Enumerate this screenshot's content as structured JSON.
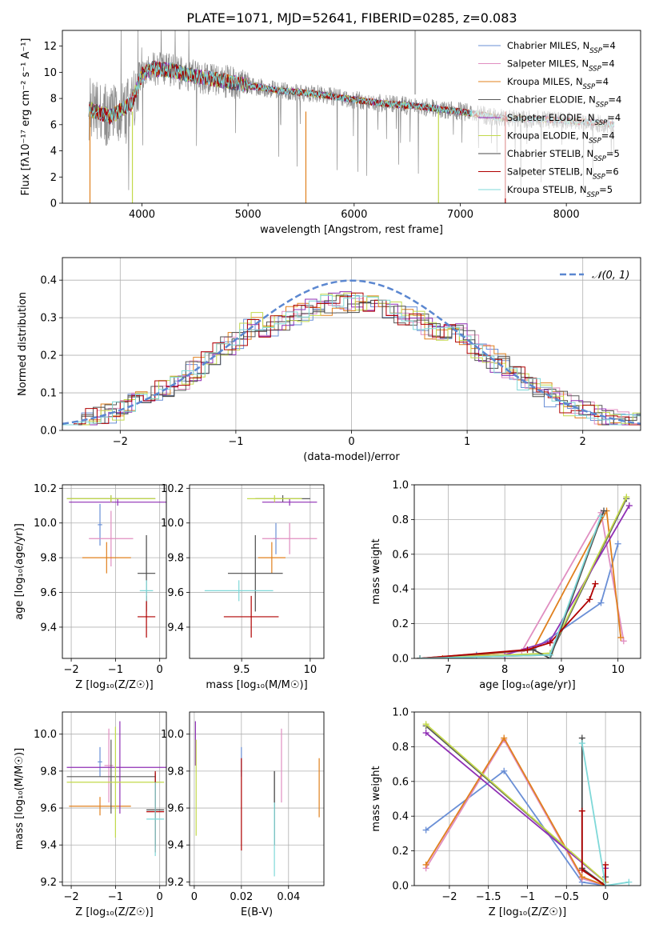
{
  "figure_title": "PLATE=1071, MJD=52641, FIBERID=0285, z=0.083",
  "colors": {
    "cM": "#6a8fd6",
    "sM": "#e08ec1",
    "kM": "#e0801e",
    "cE": "#5a5a5a",
    "sE": "#8f2fb5",
    "kE": "#c2d94a",
    "cS": "#4a4a4a",
    "sS": "#b00000",
    "kS": "#7fd8d8",
    "data": "#8c8c8c",
    "grid": "#b0b0b0",
    "normal": "#5b87d0"
  },
  "chart_data": [
    {
      "id": "spectrum",
      "type": "line",
      "xlabel": "wavelength [Angstrom, rest frame]",
      "ylabel": "Flux [fλ10⁻¹⁷ erg cm⁻² s⁻¹ A⁻¹]",
      "xlim": [
        3250,
        8700
      ],
      "ylim": [
        0,
        13.2
      ],
      "xticks": [
        4000,
        5000,
        6000,
        7000,
        8000
      ],
      "yticks": [
        0,
        2,
        4,
        6,
        8,
        10,
        12
      ],
      "legend_position": "top-right",
      "data_continuum": {
        "x": [
          3500,
          3700,
          3900,
          4000,
          4100,
          4300,
          4500,
          4800,
          5000,
          5300,
          5600,
          6000,
          6300,
          6600,
          7000,
          7400,
          7800,
          8200,
          8450
        ],
        "y": [
          7.2,
          6.6,
          7.6,
          9.8,
          10.3,
          10.1,
          9.7,
          9.3,
          9.0,
          8.6,
          8.4,
          7.9,
          7.6,
          7.4,
          7.0,
          6.5,
          6.4,
          6.2,
          6.0
        ]
      },
      "series": [
        {
          "name": "Chabrier MILES, N_SSP=4",
          "color_key": "cM"
        },
        {
          "name": "Salpeter MILES, N_SSP=4",
          "color_key": "sM"
        },
        {
          "name": "Kroupa MILES, N_SSP=4",
          "color_key": "kM"
        },
        {
          "name": "Chabrier ELODIE, N_SSP=4",
          "color_key": "cE"
        },
        {
          "name": "Salpeter ELODIE, N_SSP=4",
          "color_key": "sE"
        },
        {
          "name": "Kroupa ELODIE, N_SSP=4",
          "color_key": "kE"
        },
        {
          "name": "Chabrier STELIB, N_SSP=5",
          "color_key": "cS"
        },
        {
          "name": "Salpeter STELIB, N_SSP=6",
          "color_key": "sS"
        },
        {
          "name": "Kroupa STELIB, N_SSP=5",
          "color_key": "kS"
        }
      ]
    },
    {
      "id": "residuals",
      "type": "line",
      "xlabel": "(data-model)/error",
      "ylabel": "Normed distribution",
      "xlim": [
        -2.5,
        2.5
      ],
      "ylim": [
        0,
        0.46
      ],
      "xticks": [
        -2,
        -1,
        0,
        1,
        2
      ],
      "yticks": [
        0.0,
        0.1,
        0.2,
        0.3,
        0.4
      ],
      "grid": true,
      "legend_position": "top-right",
      "legend": "𝒩(0, 1)"
    },
    {
      "id": "age_vs_Z",
      "type": "scatter",
      "xlabel": "Z [log₁₀(Z/Z☉)]",
      "ylabel": "age  [log₁₀(age/yr)]",
      "xlim": [
        -2.2,
        0.15
      ],
      "ylim": [
        9.22,
        10.22
      ],
      "xticks": [
        -2,
        -1,
        0
      ],
      "yticks": [
        9.4,
        9.6,
        9.8,
        10.0,
        10.2
      ],
      "grid": true,
      "points": [
        {
          "color_key": "cM",
          "x": -1.35,
          "y": 9.99,
          "xe": 0.05,
          "ye": 0.12
        },
        {
          "color_key": "sM",
          "x": -1.1,
          "y": 9.91,
          "xe": 0.5,
          "ye": 0.16
        },
        {
          "color_key": "kM",
          "x": -1.2,
          "y": 9.8,
          "xe": 0.55,
          "ye": 0.09
        },
        {
          "color_key": "cE",
          "x": -1.1,
          "y": 10.14,
          "xe": 1.0,
          "ye": 0.02
        },
        {
          "color_key": "sE",
          "x": -0.95,
          "y": 10.12,
          "xe": 1.1,
          "ye": 0.02
        },
        {
          "color_key": "kE",
          "x": -1.1,
          "y": 10.14,
          "xe": 1.0,
          "ye": 0.02
        },
        {
          "color_key": "cS",
          "x": -0.3,
          "y": 9.71,
          "xe": 0.2,
          "ye": 0.22
        },
        {
          "color_key": "sS",
          "x": -0.3,
          "y": 9.46,
          "xe": 0.2,
          "ye": 0.12
        },
        {
          "color_key": "kS",
          "x": -0.3,
          "y": 9.61,
          "xe": 0.15,
          "ye": 0.06
        }
      ]
    },
    {
      "id": "age_vs_mass",
      "type": "scatter",
      "xlabel": "mass [log₁₀(M/M☉)]",
      "ylabel": "",
      "xlim": [
        9.12,
        10.1
      ],
      "ylim": [
        9.22,
        10.22
      ],
      "xticks": [
        9.5,
        10.0
      ],
      "yticks": [
        9.4,
        9.6,
        9.8,
        10.0,
        10.2
      ],
      "grid": true,
      "points": [
        {
          "color_key": "cM",
          "x": 9.75,
          "y": 9.91,
          "xe": 0.02,
          "ye": 0.09
        },
        {
          "color_key": "sM",
          "x": 9.85,
          "y": 9.91,
          "xe": 0.2,
          "ye": 0.09
        },
        {
          "color_key": "kM",
          "x": 9.72,
          "y": 9.8,
          "xe": 0.1,
          "ye": 0.09
        },
        {
          "color_key": "cE",
          "x": 9.8,
          "y": 10.14,
          "xe": 0.2,
          "ye": 0.02
        },
        {
          "color_key": "sE",
          "x": 9.85,
          "y": 10.12,
          "xe": 0.2,
          "ye": 0.02
        },
        {
          "color_key": "kE",
          "x": 9.74,
          "y": 10.14,
          "xe": 0.2,
          "ye": 0.02
        },
        {
          "color_key": "cS",
          "x": 9.6,
          "y": 9.71,
          "xe": 0.2,
          "ye": 0.22
        },
        {
          "color_key": "sS",
          "x": 9.57,
          "y": 9.46,
          "xe": 0.2,
          "ye": 0.12
        },
        {
          "color_key": "kS",
          "x": 9.48,
          "y": 9.61,
          "xe": 0.25,
          "ye": 0.06
        }
      ]
    },
    {
      "id": "weight_vs_age",
      "type": "line",
      "xlabel": "age  [log₁₀(age/yr)]",
      "ylabel": "mass weight",
      "xlim": [
        6.4,
        10.4
      ],
      "ylim": [
        0,
        1.0
      ],
      "xticks": [
        7,
        8,
        9,
        10
      ],
      "yticks": [
        0.0,
        0.2,
        0.4,
        0.6,
        0.8,
        1.0
      ],
      "grid": true,
      "series": [
        {
          "color_key": "cM",
          "x": [
            6.5,
            7.5,
            8.5,
            9.7,
            10.0
          ],
          "y": [
            0.0,
            0.02,
            0.05,
            0.32,
            0.66
          ]
        },
        {
          "color_key": "sM",
          "x": [
            6.5,
            8.3,
            9.7,
            10.1
          ],
          "y": [
            0.0,
            0.04,
            0.84,
            0.1
          ]
        },
        {
          "color_key": "kM",
          "x": [
            6.9,
            8.5,
            9.8,
            10.05
          ],
          "y": [
            0.0,
            0.05,
            0.85,
            0.12
          ]
        },
        {
          "color_key": "cE",
          "x": [
            6.5,
            8.8,
            10.15
          ],
          "y": [
            0.0,
            0.02,
            0.92
          ]
        },
        {
          "color_key": "sE",
          "x": [
            6.5,
            8.0,
            8.8,
            10.2
          ],
          "y": [
            0.0,
            0.02,
            0.1,
            0.88
          ]
        },
        {
          "color_key": "kE",
          "x": [
            6.5,
            8.8,
            10.15
          ],
          "y": [
            0.0,
            0.03,
            0.93
          ]
        },
        {
          "color_key": "cS",
          "x": [
            6.5,
            8.5,
            8.8,
            9.75
          ],
          "y": [
            0.0,
            0.05,
            0.0,
            0.85
          ]
        },
        {
          "color_key": "sS",
          "x": [
            6.5,
            8.4,
            8.8,
            9.5,
            9.6
          ],
          "y": [
            0.0,
            0.05,
            0.09,
            0.34,
            0.43
          ]
        },
        {
          "color_key": "kS",
          "x": [
            6.5,
            8.8,
            9.7
          ],
          "y": [
            0.0,
            0.02,
            0.82
          ]
        }
      ]
    },
    {
      "id": "mass_vs_Z",
      "type": "scatter",
      "xlabel": "Z [log₁₀(Z/Z☉)]",
      "ylabel": "mass [log₁₀(M/M☉)]",
      "xlim": [
        -2.2,
        0.15
      ],
      "ylim": [
        9.18,
        10.12
      ],
      "xticks": [
        -2,
        -1,
        0
      ],
      "yticks": [
        9.2,
        9.4,
        9.6,
        9.8,
        10.0
      ],
      "grid": true,
      "points": [
        {
          "color_key": "cM",
          "x": -1.35,
          "y": 9.85,
          "xe": 0.05,
          "ye": 0.08
        },
        {
          "color_key": "sM",
          "x": -1.15,
          "y": 9.83,
          "xe": 0.1,
          "ye": 0.2
        },
        {
          "color_key": "kM",
          "x": -1.35,
          "y": 9.61,
          "xe": 0.7,
          "ye": 0.05
        },
        {
          "color_key": "cE",
          "x": -1.1,
          "y": 9.77,
          "xe": 1.0,
          "ye": 0.2
        },
        {
          "color_key": "sE",
          "x": -0.9,
          "y": 9.82,
          "xe": 1.2,
          "ye": 0.25
        },
        {
          "color_key": "kE",
          "x": -1.0,
          "y": 9.74,
          "xe": 1.1,
          "ye": 0.3
        },
        {
          "color_key": "cS",
          "x": -0.1,
          "y": 9.59,
          "xe": 0.2,
          "ye": 0.2
        },
        {
          "color_key": "sS",
          "x": -0.1,
          "y": 9.58,
          "xe": 0.2,
          "ye": 0.22
        },
        {
          "color_key": "kS",
          "x": -0.1,
          "y": 9.54,
          "xe": 0.2,
          "ye": 0.2
        }
      ]
    },
    {
      "id": "mass_vs_ebv",
      "type": "scatter",
      "xlabel": "E(B-V)",
      "ylabel": "",
      "xlim": [
        -0.002,
        0.055
      ],
      "ylim": [
        9.18,
        10.12
      ],
      "xticks": [
        0.0,
        0.02,
        0.04
      ],
      "yticks": [
        9.2,
        9.4,
        9.6,
        9.8,
        10.0
      ],
      "grid": true,
      "points": [
        {
          "color_key": "cM",
          "x": 0.02,
          "y": 9.85,
          "xe": 0,
          "ye": 0.08
        },
        {
          "color_key": "sM",
          "x": 0.037,
          "y": 9.83,
          "xe": 0,
          "ye": 0.2
        },
        {
          "color_key": "kM",
          "x": 0.053,
          "y": 9.71,
          "xe": 0,
          "ye": 0.16
        },
        {
          "color_key": "cE",
          "x": 0.034,
          "y": 9.6,
          "xe": 0,
          "ye": 0.2
        },
        {
          "color_key": "sE",
          "x": 0.0005,
          "y": 9.95,
          "xe": 0,
          "ye": 0.12
        },
        {
          "color_key": "kE",
          "x": 0.0008,
          "y": 9.71,
          "xe": 0,
          "ye": 0.26
        },
        {
          "color_key": "cS",
          "x": 0.034,
          "y": 9.6,
          "xe": 0,
          "ye": 0.2
        },
        {
          "color_key": "sS",
          "x": 0.02,
          "y": 9.62,
          "xe": 0,
          "ye": 0.25
        },
        {
          "color_key": "kS",
          "x": 0.034,
          "y": 9.43,
          "xe": 0,
          "ye": 0.2
        }
      ]
    },
    {
      "id": "weight_vs_Z",
      "type": "line",
      "xlabel": "Z [log₁₀(Z/Z☉)]",
      "ylabel": "mass weight",
      "xlim": [
        -2.45,
        0.45
      ],
      "ylim": [
        0,
        1.0
      ],
      "xticks": [
        -2.0,
        -1.5,
        -1.0,
        -0.5,
        0.0
      ],
      "yticks": [
        0.0,
        0.2,
        0.4,
        0.6,
        0.8,
        1.0
      ],
      "grid": true,
      "series": [
        {
          "color_key": "cM",
          "x": [
            -2.3,
            -1.3,
            -0.3,
            0.0
          ],
          "y": [
            0.32,
            0.66,
            0.02,
            0.0
          ]
        },
        {
          "color_key": "sM",
          "x": [
            -2.3,
            -1.3,
            -0.3,
            0.0
          ],
          "y": [
            0.1,
            0.84,
            0.04,
            0.0
          ]
        },
        {
          "color_key": "kM",
          "x": [
            -2.3,
            -1.3,
            -0.3,
            0.0
          ],
          "y": [
            0.12,
            0.85,
            0.05,
            0.0
          ]
        },
        {
          "color_key": "cE",
          "x": [
            -2.3,
            0.0
          ],
          "y": [
            0.92,
            0.02
          ]
        },
        {
          "color_key": "sE",
          "x": [
            -2.3,
            0.0,
            0.0
          ],
          "y": [
            0.88,
            0.02,
            0.1
          ]
        },
        {
          "color_key": "kE",
          "x": [
            -2.3,
            0.0
          ],
          "y": [
            0.93,
            0.02
          ]
        },
        {
          "color_key": "cS",
          "x": [
            -0.3,
            -0.3,
            0.0,
            0.0
          ],
          "y": [
            0.85,
            0.1,
            0.0,
            0.05
          ]
        },
        {
          "color_key": "sS",
          "x": [
            -0.3,
            -0.3,
            0.0,
            0.0
          ],
          "y": [
            0.43,
            0.09,
            0.0,
            0.12
          ]
        },
        {
          "color_key": "kS",
          "x": [
            -0.3,
            0.0,
            0.3
          ],
          "y": [
            0.82,
            0.0,
            0.02
          ]
        }
      ]
    }
  ]
}
